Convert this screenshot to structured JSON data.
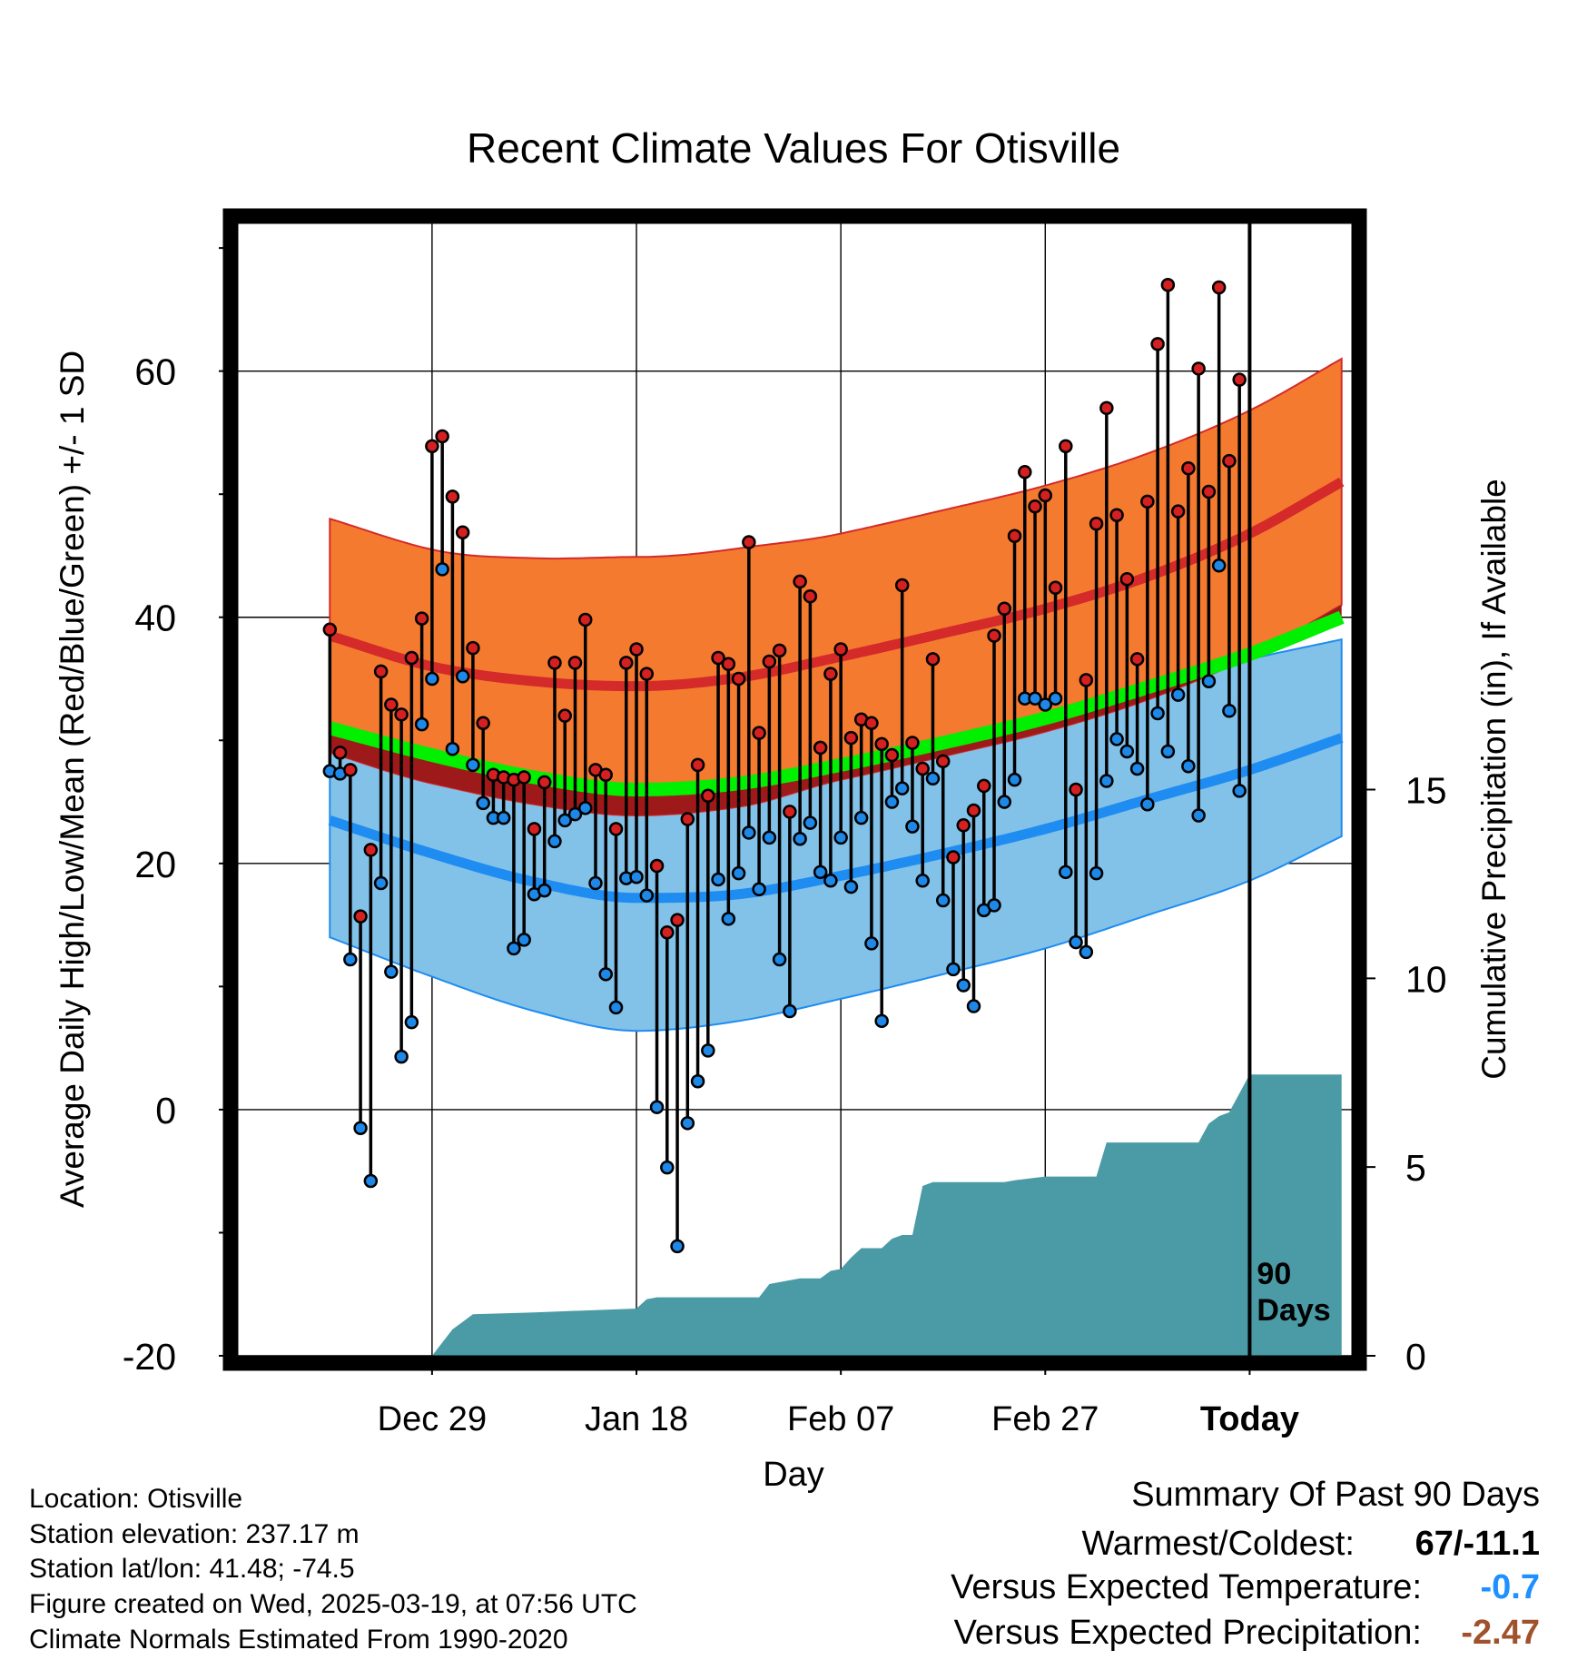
{
  "chart_data": {
    "type": "line",
    "title": "Recent Climate Values For Otisville",
    "xlabel": "Day",
    "ylabel": "Average Daily High/Low/Mean (Red/Blue/Green) +/- 1 SD",
    "y2label": "Cumulative Precipitation (in), If Available",
    "xlim": [
      -99,
      10
    ],
    "ylim": [
      -20,
      72
    ],
    "y2lim": [
      0,
      30
    ],
    "x_ticks": [
      {
        "x": -80,
        "label": "Dec 29"
      },
      {
        "x": -60,
        "label": "Jan 18"
      },
      {
        "x": -40,
        "label": "Feb 07"
      },
      {
        "x": -20,
        "label": "Feb 27"
      },
      {
        "x": 0,
        "label": "Today"
      }
    ],
    "y_ticks": [
      -20,
      0,
      20,
      40,
      60
    ],
    "y2_ticks": [
      0,
      5,
      10,
      15
    ],
    "grid": true,
    "today_marker": {
      "x": 0,
      "label_line1": "90",
      "label_line2": "Days"
    },
    "normals": {
      "x": [
        -90,
        -80,
        -70,
        -60,
        -50,
        -40,
        -30,
        -20,
        -10,
        0,
        9
      ],
      "high_mean": [
        38.5,
        36.0,
        34.8,
        34.4,
        35.1,
        36.8,
        38.7,
        40.7,
        43.3,
        46.8,
        51.0
      ],
      "high_sd": [
        9.5,
        9.5,
        10.0,
        10.5,
        10.5,
        10.0,
        10.0,
        10.0,
        10.0,
        10.0,
        10.0
      ],
      "mean_mean": [
        31.0,
        28.8,
        27.0,
        26.0,
        26.5,
        28.0,
        29.8,
        31.8,
        34.3,
        37.0,
        40.0
      ],
      "low_mean": [
        23.5,
        20.8,
        18.5,
        17.2,
        17.5,
        19.0,
        20.8,
        22.8,
        25.2,
        27.6,
        30.2
      ],
      "low_sd": [
        9.5,
        10.0,
        10.5,
        10.8,
        10.3,
        10.0,
        9.8,
        9.7,
        9.4,
        9.0,
        8.0
      ]
    },
    "observed": {
      "x": [
        -90,
        -89,
        -88,
        -87,
        -86,
        -85,
        -84,
        -83,
        -82,
        -81,
        -80,
        -79,
        -78,
        -77,
        -76,
        -75,
        -74,
        -73,
        -72,
        -71,
        -70,
        -69,
        -68,
        -67,
        -66,
        -65,
        -64,
        -63,
        -62,
        -61,
        -60,
        -59,
        -58,
        -57,
        -56,
        -55,
        -54,
        -53,
        -52,
        -51,
        -50,
        -49,
        -48,
        -47,
        -46,
        -45,
        -44,
        -43,
        -42,
        -41,
        -40,
        -39,
        -38,
        -37,
        -36,
        -35,
        -34,
        -33,
        -32,
        -31,
        -30,
        -29,
        -28,
        -27,
        -26,
        -25,
        -24,
        -23,
        -22,
        -21,
        -20,
        -19,
        -18,
        -17,
        -16,
        -15,
        -14,
        -13,
        -12,
        -11,
        -10,
        -9,
        -8,
        -7,
        -6,
        -5,
        -4,
        -3,
        -2,
        -1
      ],
      "high": [
        39,
        29,
        27.6,
        15.7,
        21.1,
        35.6,
        32.9,
        32.1,
        36.7,
        39.9,
        53.9,
        54.7,
        49.8,
        46.9,
        37.5,
        31.4,
        27.2,
        27,
        26.8,
        27,
        22.8,
        26.6,
        36.3,
        32,
        36.3,
        39.8,
        27.6,
        27.2,
        22.8,
        36.3,
        37.4,
        35.4,
        19.8,
        14.4,
        15.4,
        23.6,
        28,
        25.5,
        36.7,
        36.2,
        35,
        46.1,
        30.6,
        36.4,
        37.3,
        24.2,
        42.9,
        41.7,
        29.4,
        35.4,
        37.4,
        30.2,
        31.7,
        31.4,
        29.7,
        28.8,
        42.6,
        29.8,
        27.7,
        36.6,
        28.3,
        20.5,
        23.1,
        24.3,
        26.3,
        38.5,
        40.7,
        46.6,
        51.8,
        49,
        49.9,
        42.4,
        53.9,
        26,
        34.9,
        47.6,
        57,
        48.3,
        43.1,
        36.6,
        49.4,
        62.2,
        67,
        48.6,
        52.1,
        60.2,
        50.2,
        66.8,
        52.7,
        59.3
      ],
      "low": [
        27.5,
        27.3,
        12.2,
        -1.5,
        -5.8,
        18.4,
        11.2,
        4.3,
        7.1,
        31.3,
        35,
        43.9,
        29.3,
        35.2,
        28,
        24.9,
        23.7,
        23.7,
        13.1,
        13.8,
        17.5,
        17.8,
        21.8,
        23.5,
        24,
        24.5,
        18.4,
        11,
        8.3,
        18.8,
        18.9,
        17.4,
        0.2,
        -4.7,
        -11.1,
        -1.1,
        2.3,
        4.8,
        18.7,
        15.5,
        19.2,
        22.5,
        17.9,
        22.1,
        12.2,
        8,
        22,
        23.3,
        19.3,
        18.6,
        22.1,
        18.1,
        23.7,
        13.5,
        7.2,
        25,
        26.1,
        23,
        18.6,
        26.9,
        17,
        11.4,
        10.1,
        8.4,
        16.2,
        16.6,
        25,
        26.8,
        33.4,
        33.4,
        32.9,
        33.4,
        19.3,
        13.6,
        12.8,
        19.2,
        26.7,
        30.1,
        29.1,
        27.7,
        24.8,
        32.2,
        29.1,
        33.7,
        27.9,
        23.9,
        34.8,
        44.2,
        32.4,
        25.9
      ]
    },
    "precip_cumulative": {
      "x": [
        -90,
        -80,
        -78,
        -76,
        -70,
        -60,
        -59,
        -58,
        -48,
        -47,
        -46,
        -44,
        -42,
        -41,
        -40,
        -39,
        -38,
        -36,
        -35,
        -34,
        -33,
        -32,
        -31,
        -28,
        -24,
        -23,
        -20,
        -15,
        -14,
        -10,
        -5,
        -4,
        -3,
        -2,
        0,
        9
      ],
      "y": [
        0,
        0,
        0.7,
        1.1,
        1.15,
        1.25,
        1.5,
        1.55,
        1.55,
        1.9,
        1.95,
        2.05,
        2.05,
        2.25,
        2.3,
        2.6,
        2.85,
        2.85,
        3.1,
        3.2,
        3.2,
        4.5,
        4.6,
        4.6,
        4.6,
        4.65,
        4.75,
        4.75,
        5.65,
        5.65,
        5.65,
        6.15,
        6.35,
        6.45,
        7.45,
        7.45
      ]
    }
  },
  "footer": {
    "location": "Location: Otisville",
    "elevation": "Station elevation: 237.17 m",
    "latlon": "Station lat/lon: 41.48; -74.5",
    "created": "Figure created on Wed, 2025-03-19, at 07:56 UTC",
    "normals_note": "Climate Normals Estimated From 1990-2020"
  },
  "summary": {
    "heading": "Summary Of Past 90 Days",
    "warmest_coldest_label": "Warmest/Coldest:",
    "warmest_coldest_value": "67/-11.1",
    "temp_label": "Versus Expected Temperature:",
    "temp_value": "-0.7",
    "precip_label": "Versus Expected Precipitation:",
    "precip_value": "-2.47"
  },
  "colors": {
    "high_band": "#f47a30",
    "high_line": "#d42a2a",
    "high_dot": "#d42020",
    "mean_line": "#00f000",
    "mean_band": "#9e1a1a",
    "low_band": "#82c1e8",
    "low_line": "#1e8cf0",
    "low_dot": "#1e88e8",
    "precip_fill": "#4a9ba6",
    "temp_value": "#1e90ff",
    "precip_value": "#a0522d"
  }
}
